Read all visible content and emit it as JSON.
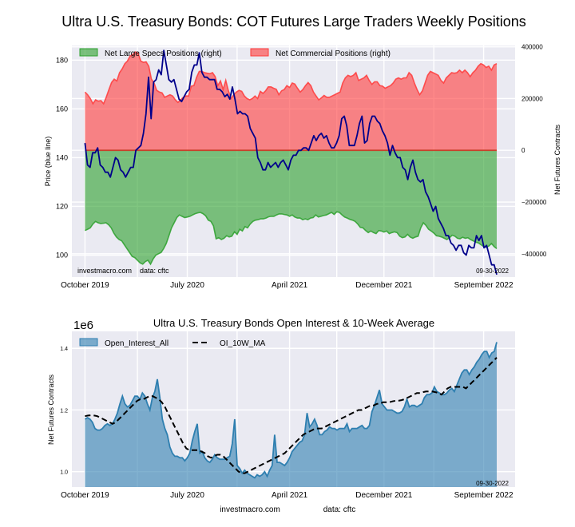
{
  "chart_data": [
    {
      "type": "area",
      "title": "Ultra U.S. Treasury Bonds: COT Futures Large Traders Weekly Positions",
      "ylabel_left": "Price (blue line)",
      "ylabel_right": "Net Futures Contracts",
      "left_ticks": [
        "100",
        "120",
        "140",
        "160",
        "180"
      ],
      "left_tick_values": [
        100,
        120,
        140,
        160,
        180
      ],
      "left_ylim": [
        91,
        186
      ],
      "right_ticks": [
        "400000",
        "200000",
        "0",
        "−200000",
        "−400000"
      ],
      "right_tick_values": [
        400000,
        200000,
        0,
        -200000,
        -400000
      ],
      "right_ylim": [
        -490000,
        405000
      ],
      "x_ticks": [
        "October 2019",
        "July 2020",
        "April 2021",
        "December 2021",
        "September 2022"
      ],
      "x_tick_positions": [
        0,
        39,
        78,
        114,
        152
      ],
      "x_range": [
        -5,
        164
      ],
      "grid": true,
      "legend": [
        {
          "label": "Net Large Specs Positions (right)",
          "color": "#2ca02c"
        },
        {
          "label": "Net Commercial Positions (right)",
          "color": "#ff3a3a"
        }
      ],
      "legend_placement": "top",
      "annotations": [
        "investmacro.com    data: cftc",
        "09-30-2022"
      ],
      "series": [
        {
          "name": "Net Commercial Positions (right)",
          "color": "#ff3a3a",
          "values": [
            225000,
            215000,
            200000,
            180000,
            195000,
            190000,
            192000,
            180000,
            205000,
            235000,
            262000,
            275000,
            268000,
            300000,
            315000,
            335000,
            345000,
            365000,
            370000,
            380000,
            375000,
            345000,
            340000,
            342000,
            325000,
            275000,
            260000,
            232000,
            225000,
            222000,
            205000,
            210000,
            215000,
            210000,
            195000,
            185000,
            195000,
            205000,
            210000,
            210000,
            248000,
            250000,
            282000,
            305000,
            305000,
            300000,
            298000,
            296000,
            300000,
            285000,
            250000,
            268000,
            235000,
            270000,
            230000,
            200000,
            215000,
            225000,
            232000,
            228000,
            210000,
            200000,
            195000,
            200000,
            210000,
            200000,
            228000,
            220000,
            230000,
            245000,
            245000,
            240000,
            236000,
            215000,
            230000,
            235000,
            250000,
            243000,
            260000,
            256000,
            240000,
            225000,
            235000,
            250000,
            262000,
            250000,
            225000,
            210000,
            195000,
            203000,
            212000,
            205000,
            205000,
            210000,
            215000,
            220000,
            225000,
            260000,
            280000,
            290000,
            285000,
            290000,
            300000,
            270000,
            275000,
            280000,
            290000,
            270000,
            255000,
            265000,
            265000,
            250000,
            248000,
            240000,
            245000,
            250000,
            260000,
            275000,
            280000,
            275000,
            280000,
            280000,
            300000,
            290000,
            260000,
            235000,
            215000,
            230000,
            260000,
            290000,
            305000,
            300000,
            295000,
            290000,
            270000,
            260000,
            280000,
            290000,
            300000,
            298000,
            300000,
            310000,
            300000,
            310000,
            300000,
            285000,
            300000,
            310000,
            325000,
            335000,
            330000,
            320000,
            325000,
            310000,
            330000,
            335000
          ],
          "fill": "positive"
        },
        {
          "name": "Net Large Specs Positions (right)",
          "color": "#2ca02c",
          "values": [
            -310000,
            -305000,
            -300000,
            -285000,
            -275000,
            -280000,
            -283000,
            -282000,
            -280000,
            -288000,
            -300000,
            -320000,
            -335000,
            -345000,
            -350000,
            -365000,
            -380000,
            -395000,
            -410000,
            -415000,
            -425000,
            -435000,
            -440000,
            -430000,
            -425000,
            -440000,
            -420000,
            -405000,
            -400000,
            -395000,
            -380000,
            -360000,
            -330000,
            -300000,
            -280000,
            -260000,
            -250000,
            -255000,
            -260000,
            -258000,
            -255000,
            -250000,
            -245000,
            -242000,
            -240000,
            -245000,
            -253000,
            -270000,
            -275000,
            -292000,
            -342000,
            -338000,
            -345000,
            -340000,
            -330000,
            -335000,
            -332000,
            -315000,
            -325000,
            -305000,
            -312000,
            -295000,
            -300000,
            -285000,
            -275000,
            -270000,
            -268000,
            -265000,
            -265000,
            -262000,
            -257000,
            -255000,
            -255000,
            -250000,
            -246000,
            -246000,
            -248000,
            -250000,
            -255000,
            -250000,
            -258000,
            -262000,
            -262000,
            -268000,
            -265000,
            -268000,
            -262000,
            -260000,
            -250000,
            -258000,
            -255000,
            -252000,
            -250000,
            -245000,
            -240000,
            -248000,
            -238000,
            -240000,
            -250000,
            -258000,
            -262000,
            -267000,
            -270000,
            -275000,
            -285000,
            -298000,
            -300000,
            -310000,
            -318000,
            -312000,
            -318000,
            -322000,
            -310000,
            -312000,
            -316000,
            -312000,
            -322000,
            -318000,
            -315000,
            -318000,
            -332000,
            -338000,
            -335000,
            -325000,
            -335000,
            -340000,
            -335000,
            -332000,
            -300000,
            -280000,
            -290000,
            -305000,
            -312000,
            -320000,
            -330000,
            -332000,
            -335000,
            -340000,
            -345000,
            -338000,
            -328000,
            -332000,
            -340000,
            -342000,
            -336000,
            -340000,
            -338000,
            -345000,
            -350000,
            -355000,
            -358000,
            -365000,
            -372000,
            -375000,
            -370000,
            -360000,
            -372000,
            -380000
          ],
          "fill": "negative"
        },
        {
          "name": "Price (blue line)",
          "color": "#00008b",
          "axis": "left",
          "values": [
            146,
            137,
            136,
            142,
            142,
            144,
            137,
            136,
            134,
            134,
            132,
            136,
            140,
            139,
            135,
            134,
            132,
            134,
            136,
            136,
            143,
            144,
            145,
            150,
            158,
            173,
            156,
            171,
            172,
            176,
            174,
            184,
            178,
            172,
            171,
            172,
            168,
            164,
            163,
            165,
            167,
            168,
            175,
            178,
            178,
            183,
            175,
            173,
            173,
            172,
            172,
            172,
            168,
            168,
            167,
            165,
            166,
            164,
            169,
            164,
            158,
            159,
            158,
            158,
            157,
            152,
            150,
            148,
            140,
            138,
            135,
            135,
            138,
            136,
            137,
            138,
            136,
            138,
            139,
            137,
            135,
            139,
            141,
            141,
            143,
            143,
            144,
            144,
            143,
            146,
            149,
            147,
            149,
            150,
            148,
            149,
            146,
            144,
            144,
            146,
            149,
            156,
            157,
            153,
            145,
            145,
            145,
            149,
            154,
            157,
            146,
            147,
            154,
            157,
            157,
            155,
            154,
            151,
            149,
            146,
            141,
            145,
            142,
            140,
            140,
            136,
            135,
            131,
            136,
            139,
            134,
            131,
            130,
            131,
            126,
            124,
            121,
            118,
            120,
            115,
            113,
            111,
            108,
            108,
            105,
            104,
            102,
            104,
            104,
            101,
            100,
            104,
            103,
            103,
            108,
            106,
            108,
            103,
            104,
            100,
            96,
            96,
            92
          ]
        }
      ]
    },
    {
      "type": "area",
      "title": "Ultra U.S. Treasury Bonds Open Interest & 10-Week Average",
      "ylabel": "Net Futures Contracts",
      "y_scale_label": "1e6",
      "y_ticks": [
        "1.0",
        "1.2",
        "1.4"
      ],
      "y_tick_values": [
        1.0,
        1.2,
        1.4
      ],
      "ylim": [
        0.95,
        1.455
      ],
      "x_ticks": [
        "October 2019",
        "July 2020",
        "April 2021",
        "December 2021",
        "September 2022"
      ],
      "x_tick_positions": [
        0,
        39,
        78,
        114,
        152
      ],
      "x_range": [
        -5,
        164
      ],
      "grid": true,
      "legend": [
        {
          "label": "Open_Interest_All",
          "color": "#2e7fb0",
          "style": "area"
        },
        {
          "label": "OI_10W_MA",
          "color": "#000000",
          "style": "dashed"
        }
      ],
      "legend_placement": "top-left",
      "annotations": [
        "09-30-2022"
      ],
      "footer": [
        "investmacro.com",
        "data: cftc"
      ],
      "series": [
        {
          "name": "Open_Interest_All",
          "color": "#2e7fb0",
          "values": [
            1.17,
            1.175,
            1.17,
            1.16,
            1.14,
            1.135,
            1.135,
            1.14,
            1.15,
            1.155,
            1.15,
            1.155,
            1.17,
            1.19,
            1.22,
            1.245,
            1.22,
            1.21,
            1.215,
            1.23,
            1.245,
            1.245,
            1.235,
            1.255,
            1.245,
            1.22,
            1.2,
            1.24,
            1.26,
            1.3,
            1.24,
            1.17,
            1.14,
            1.12,
            1.08,
            1.06,
            1.05,
            1.05,
            1.045,
            1.045,
            1.035,
            1.045,
            1.06,
            1.1,
            1.13,
            1.155,
            1.06,
            1.065,
            1.045,
            1.035,
            1.03,
            1.04,
            1.055,
            1.045,
            1.04,
            1.04,
            1.04,
            1.045,
            1.05,
            1.09,
            1.17,
            1.02,
            1.01,
            0.995,
            1.005,
            0.995,
            0.99,
            0.985,
            0.98,
            0.99,
            0.985,
            0.99,
            1.0,
            0.985,
            1.005,
            1.02,
            1.12,
            1.03,
            1.03,
            1.025,
            1.02,
            1.03,
            1.045,
            1.065,
            1.075,
            1.085,
            1.095,
            1.1,
            1.12,
            1.19,
            1.145,
            1.155,
            1.17,
            1.15,
            1.12,
            1.12,
            1.13,
            1.135,
            1.145,
            1.14,
            1.14,
            1.135,
            1.14,
            1.14,
            1.14,
            1.155,
            1.13,
            1.14,
            1.14,
            1.14,
            1.145,
            1.15,
            1.14,
            1.14,
            1.15,
            1.195,
            1.215,
            1.24,
            1.265,
            1.22,
            1.21,
            1.2,
            1.2,
            1.2,
            1.195,
            1.19,
            1.19,
            1.195,
            1.21,
            1.235,
            1.21,
            1.215,
            1.215,
            1.21,
            1.215,
            1.22,
            1.24,
            1.25,
            1.25,
            1.255,
            1.275,
            1.26,
            1.255,
            1.25,
            1.25,
            1.255,
            1.265,
            1.27,
            1.26,
            1.28,
            1.3,
            1.32,
            1.33,
            1.33,
            1.315,
            1.33,
            1.34,
            1.355,
            1.365,
            1.38,
            1.39,
            1.39,
            1.37,
            1.385,
            1.39,
            1.42
          ],
          "fill": true
        },
        {
          "name": "OI_10W_MA",
          "color": "#000000",
          "style": "dashed",
          "values": [
            1.18,
            1.182,
            1.183,
            1.182,
            1.18,
            1.175,
            1.17,
            1.165,
            1.16,
            1.155,
            1.16,
            1.17,
            1.18,
            1.19,
            1.2,
            1.21,
            1.22,
            1.23,
            1.235,
            1.235,
            1.24,
            1.245,
            1.245,
            1.24,
            1.235,
            1.225,
            1.21,
            1.19,
            1.17,
            1.15,
            1.13,
            1.11,
            1.09,
            1.075,
            1.07,
            1.07,
            1.07,
            1.07,
            1.065,
            1.06,
            1.05,
            1.045,
            1.05,
            1.055,
            1.055,
            1.05,
            1.04,
            1.03,
            1.02,
            1.01,
            1.0,
            0.995,
            0.995,
            1.0,
            1.005,
            1.01,
            1.015,
            1.02,
            1.025,
            1.03,
            1.035,
            1.04,
            1.045,
            1.05,
            1.055,
            1.06,
            1.07,
            1.08,
            1.09,
            1.1,
            1.11,
            1.12,
            1.125,
            1.13,
            1.135,
            1.14,
            1.14,
            1.14,
            1.145,
            1.15,
            1.155,
            1.16,
            1.165,
            1.17,
            1.175,
            1.18,
            1.185,
            1.19,
            1.195,
            1.2,
            1.2,
            1.205,
            1.21,
            1.215,
            1.215,
            1.22,
            1.22,
            1.225,
            1.225,
            1.225,
            1.228,
            1.23,
            1.23,
            1.232,
            1.235,
            1.24,
            1.245,
            1.25,
            1.255,
            1.255,
            1.258,
            1.26,
            1.26,
            1.26,
            1.258,
            1.255,
            1.25,
            1.26,
            1.27,
            1.275,
            1.275,
            1.275,
            1.275,
            1.275,
            1.27,
            1.28,
            1.29,
            1.3,
            1.31,
            1.32,
            1.33,
            1.34,
            1.35,
            1.36,
            1.37
          ],
          "fill": false
        }
      ]
    }
  ]
}
